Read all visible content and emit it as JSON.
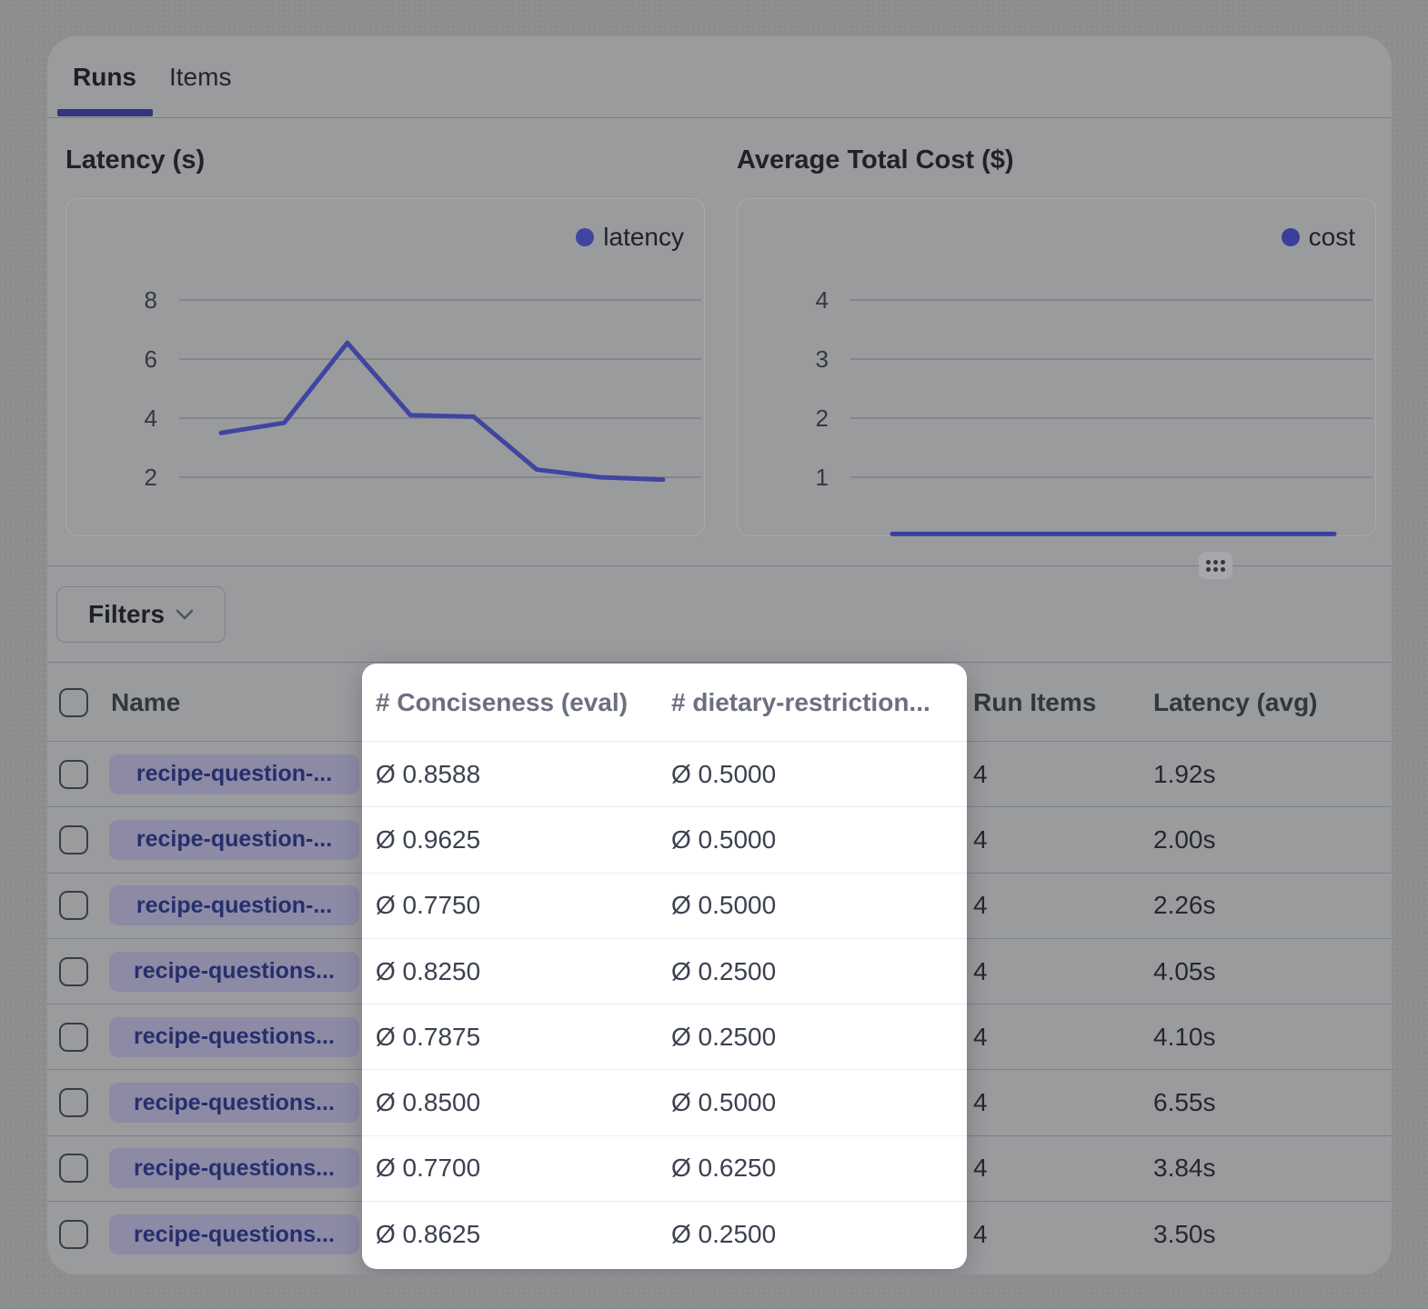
{
  "tabs": {
    "runs": "Runs",
    "items": "Items"
  },
  "sections": {
    "latency_title": "Latency (s)",
    "cost_title": "Average Total Cost ($)"
  },
  "chart_data": [
    {
      "type": "line",
      "title": "Latency (s)",
      "series": [
        {
          "name": "latency",
          "values": [
            3.5,
            3.84,
            6.55,
            4.1,
            4.05,
            2.26,
            2.0,
            1.92
          ]
        }
      ],
      "x": [
        1,
        2,
        3,
        4,
        5,
        6,
        7,
        8
      ],
      "xlabel": "",
      "ylabel": "Latency (s)",
      "yticks": [
        2,
        4,
        6,
        8
      ],
      "ylim": [
        0,
        9.5
      ],
      "grid": true,
      "legend": [
        "latency"
      ],
      "legend_position": "top-right",
      "line_color": "#4045a1"
    },
    {
      "type": "line",
      "title": "Average Total Cost ($)",
      "series": [
        {
          "name": "cost",
          "values": [
            0.04,
            0.04,
            0.04,
            0.04,
            0.04,
            0.04,
            0.04,
            0.04
          ]
        }
      ],
      "x": [
        1,
        2,
        3,
        4,
        5,
        6,
        7,
        8
      ],
      "xlabel": "",
      "ylabel": "Average Total Cost ($)",
      "yticks": [
        1,
        2,
        3,
        4
      ],
      "ylim": [
        0,
        4.75
      ],
      "grid": true,
      "legend": [
        "cost"
      ],
      "legend_position": "top-right",
      "line_color": "#3a3f9e"
    }
  ],
  "filters": {
    "label": "Filters"
  },
  "table": {
    "header": {
      "name": "Name",
      "conciseness": "# Conciseness (eval)",
      "dietary": "# dietary-restriction...",
      "run_items": "Run Items",
      "latency": "Latency (avg)"
    },
    "rows": [
      {
        "name": "recipe-question-...",
        "conciseness": "Ø 0.8588",
        "dietary": "Ø 0.5000",
        "run_items": "4",
        "latency": "1.92s"
      },
      {
        "name": "recipe-question-...",
        "conciseness": "Ø 0.9625",
        "dietary": "Ø 0.5000",
        "run_items": "4",
        "latency": "2.00s"
      },
      {
        "name": "recipe-question-...",
        "conciseness": "Ø 0.7750",
        "dietary": "Ø 0.5000",
        "run_items": "4",
        "latency": "2.26s"
      },
      {
        "name": "recipe-questions...",
        "conciseness": "Ø 0.8250",
        "dietary": "Ø 0.2500",
        "run_items": "4",
        "latency": "4.05s"
      },
      {
        "name": "recipe-questions...",
        "conciseness": "Ø 0.7875",
        "dietary": "Ø 0.2500",
        "run_items": "4",
        "latency": "4.10s"
      },
      {
        "name": "recipe-questions...",
        "conciseness": "Ø 0.8500",
        "dietary": "Ø 0.5000",
        "run_items": "4",
        "latency": "6.55s"
      },
      {
        "name": "recipe-questions...",
        "conciseness": "Ø 0.7700",
        "dietary": "Ø 0.6250",
        "run_items": "4",
        "latency": "3.84s"
      },
      {
        "name": "recipe-questions...",
        "conciseness": "Ø 0.8625",
        "dietary": "Ø 0.2500",
        "run_items": "4",
        "latency": "3.50s"
      }
    ]
  },
  "colors": {
    "accent_indigo": "#30357d",
    "latency_line": "#4045a1",
    "cost_line": "#3a3f9e",
    "badge_bg": "#8c8aa5",
    "badge_text": "#262e6d",
    "spotlight_bg": "#ffffff"
  }
}
